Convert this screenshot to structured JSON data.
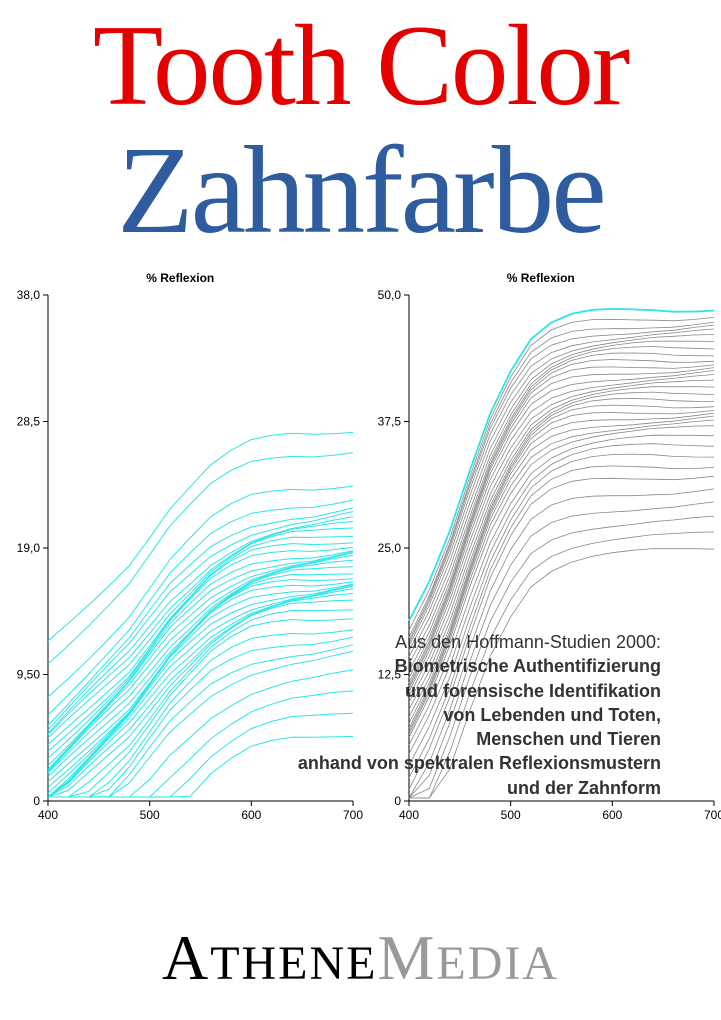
{
  "title_en": {
    "text": "Tooth Color",
    "color": "#e50000"
  },
  "title_de": {
    "text": "Zahnfarbe",
    "color": "#2f5c9e"
  },
  "charts": {
    "header_label": "% Reflexion",
    "x_axis": {
      "min": 400,
      "max": 700,
      "ticks": [
        400,
        500,
        600,
        700
      ]
    },
    "left": {
      "line_color": "#2ce5e5",
      "line_width": 1.0,
      "y_axis": {
        "min": 0,
        "max": 38.0,
        "ticks": [
          0,
          9.5,
          19.0,
          28.5,
          38.0
        ],
        "labels": [
          "0",
          "9,50",
          "19,0",
          "28,5",
          "38,0"
        ]
      },
      "series_offsets": [
        0,
        -1.2,
        -2.0,
        -2.5,
        -3.0,
        -3.3,
        -3.6,
        -4.0,
        -4.3,
        -4.6,
        -5.0,
        -5.3,
        -5.6,
        -5.9,
        -6.2,
        -6.5,
        -6.8,
        -7.0,
        -7.2,
        -7.5,
        -7.8,
        -8.1,
        -8.4,
        -8.7,
        -9.0,
        -9.5,
        -10.0,
        -10.8,
        -11.5,
        -12.3,
        -13.0,
        -14.5,
        -16.0,
        -17.5,
        -19.0,
        4.0,
        2.5
      ],
      "base_points": [
        [
          400,
          8.0
        ],
        [
          420,
          9.5
        ],
        [
          440,
          11.0
        ],
        [
          460,
          12.5
        ],
        [
          480,
          14.0
        ],
        [
          500,
          16.0
        ],
        [
          520,
          18.0
        ],
        [
          540,
          19.5
        ],
        [
          560,
          21.0
        ],
        [
          580,
          22.0
        ],
        [
          600,
          22.8
        ],
        [
          620,
          23.2
        ],
        [
          640,
          23.5
        ],
        [
          660,
          23.6
        ],
        [
          680,
          23.8
        ],
        [
          700,
          24.0
        ]
      ]
    },
    "right": {
      "line_color": "#888888",
      "highlight_color": "#2ce5e5",
      "line_width": 0.8,
      "y_axis": {
        "min": 0,
        "max": 50.0,
        "ticks": [
          0,
          12.5,
          25.0,
          37.5,
          50.0
        ],
        "labels": [
          "0",
          "12,5",
          "25,0",
          "37,5",
          "50,0"
        ]
      },
      "series_offsets": [
        0,
        -0.8,
        -1.5,
        -2.0,
        -2.5,
        -3.0,
        -3.5,
        -4.0,
        -4.5,
        -5.0,
        -5.5,
        -6.0,
        -6.5,
        -7.0,
        -7.5,
        -8.0,
        -8.5,
        -9.0,
        -9.5,
        -10.0,
        -10.5,
        -11.0,
        -11.5,
        -12.0,
        -12.8,
        -13.6,
        -14.5,
        -15.5,
        -16.5,
        -18.0,
        -19.5,
        -21.0,
        -22.5,
        -24.0
      ],
      "base_points": [
        [
          400,
          18.0
        ],
        [
          420,
          22.0
        ],
        [
          440,
          27.0
        ],
        [
          460,
          33.0
        ],
        [
          480,
          38.5
        ],
        [
          500,
          42.5
        ],
        [
          520,
          45.5
        ],
        [
          540,
          47.0
        ],
        [
          560,
          47.8
        ],
        [
          580,
          48.2
        ],
        [
          600,
          48.4
        ],
        [
          620,
          48.5
        ],
        [
          640,
          48.6
        ],
        [
          660,
          48.6
        ],
        [
          680,
          48.7
        ],
        [
          700,
          48.8
        ]
      ]
    }
  },
  "overlay": {
    "intro": "Aus den Hoffmann-Studien 2000:",
    "lines": [
      "Biometrische Authentifizierung",
      "und forensische Identifikation",
      "von Lebenden und Toten,",
      "Menschen und Tieren",
      "anhand von spektralen Reflexionsmustern",
      "und der Zahnform"
    ]
  },
  "publisher": {
    "part1_upper": "A",
    "part1_rest": "THENE",
    "part2_upper": "M",
    "part2_rest": "EDIA",
    "color1": "#000000",
    "color2": "#999999"
  }
}
